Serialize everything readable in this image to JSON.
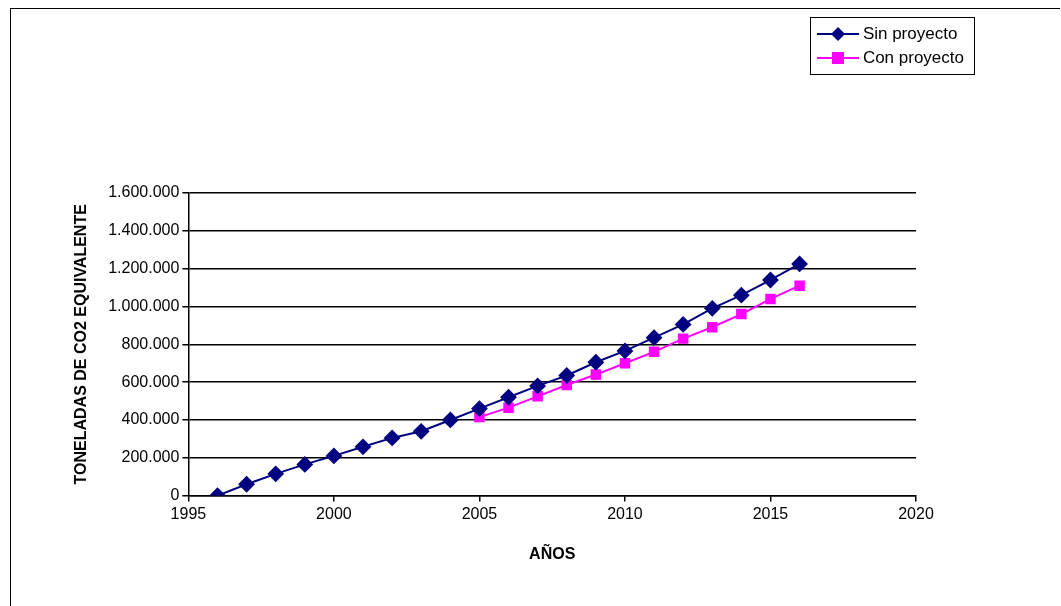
{
  "chart_data": {
    "type": "line",
    "xlabel": "AÑOS",
    "ylabel": "TONELADAS DE CO2 EQUIVALENTE",
    "xlim": [
      1995,
      2020
    ],
    "xticks": [
      1995,
      2000,
      2005,
      2010,
      2015,
      2020
    ],
    "ylim": [
      0,
      1600000
    ],
    "yticks": [
      0,
      {
        "value": 200000,
        "label": "200.000"
      },
      {
        "value": 400000,
        "label": "400.000"
      },
      {
        "value": 600000,
        "label": "600.000"
      },
      {
        "value": 800000,
        "label": "800.000"
      },
      {
        "value": 1000000,
        "label": "1.000.000"
      },
      {
        "value": 1200000,
        "label": "1.200.000"
      },
      {
        "value": 1400000,
        "label": "1.400.000"
      },
      {
        "value": 1600000,
        "label": "1.600.000"
      }
    ],
    "grid": "y",
    "legend": "top right",
    "series": [
      {
        "name": "Sin proyecto",
        "color": "#000080",
        "marker": "diamond",
        "x": [
          1996,
          1997,
          1998,
          1999,
          2000,
          2001,
          2002,
          2003,
          2004,
          2005,
          2006,
          2007,
          2008,
          2009,
          2010,
          2011,
          2012,
          2013,
          2014,
          2015,
          2016
        ],
        "values": [
          0,
          60000,
          115000,
          165000,
          210000,
          258000,
          305000,
          340000,
          400000,
          460000,
          520000,
          580000,
          635000,
          705000,
          765000,
          835000,
          905000,
          990000,
          1060000,
          1140000,
          1225000
        ]
      },
      {
        "name": "Con proyecto",
        "color": "#ff00ff",
        "marker": "square",
        "x": [
          2005,
          2006,
          2007,
          2008,
          2009,
          2010,
          2011,
          2012,
          2013,
          2014,
          2015,
          2016
        ],
        "values": [
          415000,
          465000,
          525000,
          585000,
          640000,
          700000,
          760000,
          830000,
          890000,
          960000,
          1040000,
          1110000
        ]
      }
    ]
  }
}
